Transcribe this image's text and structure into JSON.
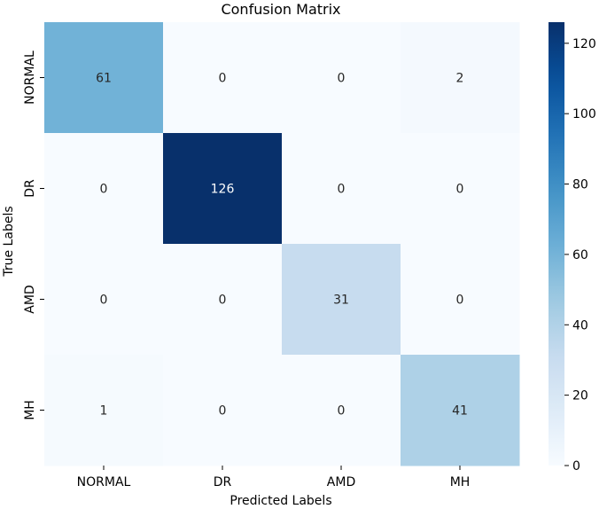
{
  "chart_data": {
    "type": "heatmap",
    "title": "Confusion Matrix",
    "xlabel": "Predicted Labels",
    "ylabel": "True Labels",
    "x_categories": [
      "NORMAL",
      "DR",
      "AMD",
      "MH"
    ],
    "y_categories": [
      "NORMAL",
      "DR",
      "AMD",
      "MH"
    ],
    "values": [
      [
        61,
        0,
        0,
        2
      ],
      [
        0,
        126,
        0,
        0
      ],
      [
        0,
        0,
        31,
        0
      ],
      [
        1,
        0,
        0,
        41
      ]
    ],
    "colormap": "Blues",
    "colorbar": {
      "range": [
        0,
        126
      ],
      "ticks": [
        0,
        20,
        40,
        60,
        80,
        100,
        120
      ]
    }
  }
}
